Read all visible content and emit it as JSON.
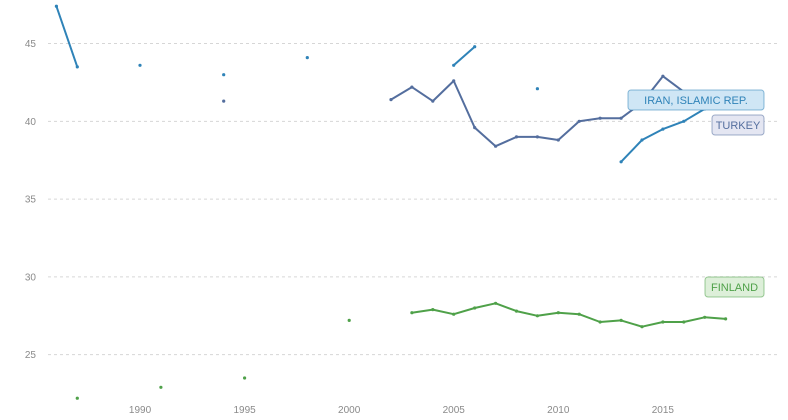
{
  "chart_data": {
    "type": "line",
    "title": "",
    "xlabel": "",
    "ylabel": "",
    "xlim": [
      1985.6,
      2020.6
    ],
    "ylim": [
      20.8,
      47.8
    ],
    "x_ticks": [
      1990,
      1995,
      2000,
      2005,
      2010,
      2015
    ],
    "y_ticks": [
      25,
      30,
      35,
      40,
      45
    ],
    "grid": "horizontal dashed",
    "legend": "inline labels at right",
    "series": [
      {
        "name": "IRAN, ISLAMIC REP.",
        "color": "#2f83b8",
        "label_fill": "#cfe6f5",
        "points": [
          [
            1986,
            47.4
          ],
          [
            1987,
            43.5
          ],
          [
            1990,
            43.6
          ],
          [
            1994,
            43.0
          ],
          [
            1998,
            44.1
          ],
          [
            2005,
            43.6
          ],
          [
            2006,
            44.8
          ],
          [
            2009,
            42.1
          ],
          [
            2013,
            37.4
          ],
          [
            2014,
            38.8
          ],
          [
            2015,
            39.5
          ],
          [
            2016,
            40.0
          ],
          [
            2017,
            40.8
          ],
          [
            2018,
            41.9
          ],
          [
            2019,
            41.9
          ]
        ]
      },
      {
        "name": "TURKEY",
        "color": "#546e9e",
        "label_fill": "#e4e6f2",
        "points": [
          [
            1994,
            41.3
          ],
          [
            2002,
            41.4
          ],
          [
            2003,
            42.2
          ],
          [
            2004,
            41.3
          ],
          [
            2005,
            42.6
          ],
          [
            2006,
            39.6
          ],
          [
            2007,
            38.4
          ],
          [
            2008,
            39.0
          ],
          [
            2009,
            39.0
          ],
          [
            2010,
            38.8
          ],
          [
            2011,
            40.0
          ],
          [
            2012,
            40.2
          ],
          [
            2013,
            40.2
          ],
          [
            2014,
            41.2
          ],
          [
            2015,
            42.9
          ],
          [
            2016,
            41.9
          ],
          [
            2017,
            41.4
          ],
          [
            2018,
            41.9
          ],
          [
            2019,
            41.9
          ]
        ]
      },
      {
        "name": "FINLAND",
        "color": "#4fa149",
        "label_fill": "#ddefd9",
        "points": [
          [
            1987,
            22.2
          ],
          [
            1991,
            22.9
          ],
          [
            1995,
            23.5
          ],
          [
            2000,
            27.2
          ],
          [
            2003,
            27.7
          ],
          [
            2004,
            27.9
          ],
          [
            2005,
            27.6
          ],
          [
            2006,
            28.0
          ],
          [
            2007,
            28.3
          ],
          [
            2008,
            27.8
          ],
          [
            2009,
            27.5
          ],
          [
            2010,
            27.7
          ],
          [
            2011,
            27.6
          ],
          [
            2012,
            27.1
          ],
          [
            2013,
            27.2
          ],
          [
            2014,
            26.8
          ],
          [
            2015,
            27.1
          ],
          [
            2016,
            27.1
          ],
          [
            2017,
            27.4
          ],
          [
            2018,
            27.3
          ]
        ]
      }
    ]
  }
}
